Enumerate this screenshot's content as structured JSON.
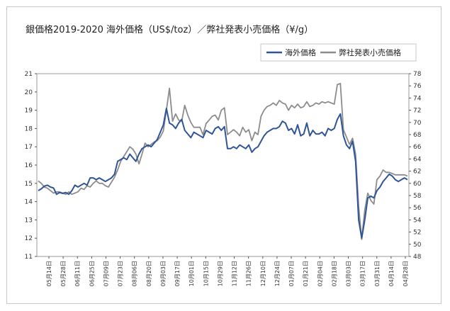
{
  "chart_data": {
    "type": "line",
    "title": "銀価格2019-2020 海外価格（US$/toz）／弊社発表小売価格（¥/g）",
    "legend_position": "top-right",
    "grid": true,
    "y_left": {
      "min": 11,
      "max": 21,
      "step": 1,
      "ticks": [
        "11",
        "12",
        "13",
        "14",
        "15",
        "16",
        "17",
        "18",
        "19",
        "20",
        "21"
      ]
    },
    "y_right": {
      "min": 48,
      "max": 78,
      "step": 2,
      "ticks": [
        "48",
        "50",
        "52",
        "54",
        "56",
        "58",
        "60",
        "62",
        "64",
        "66",
        "68",
        "70",
        "72",
        "74",
        "76",
        "78"
      ]
    },
    "x_labels": [
      "05月14日",
      "05月28日",
      "06月11日",
      "06月25日",
      "07月09日",
      "07月23日",
      "08月06日",
      "08月20日",
      "09月03日",
      "09月17日",
      "10月01日",
      "10月15日",
      "10月29日",
      "11月12日",
      "11月26日",
      "12月10日",
      "12月24日",
      "01月07日",
      "01月21日",
      "02月04日",
      "02月18日",
      "03月03日",
      "03月17日",
      "03月31日",
      "04月14日",
      "04月28日"
    ],
    "series": [
      {
        "name": "海外価格",
        "axis": "left",
        "color": "#2f5597",
        "values": [
          14.6,
          14.7,
          14.85,
          14.9,
          14.8,
          14.75,
          14.4,
          14.5,
          14.45,
          14.5,
          14.4,
          14.6,
          14.9,
          14.8,
          14.9,
          15.0,
          14.9,
          15.3,
          15.3,
          15.2,
          15.3,
          15.2,
          15.1,
          15.2,
          15.3,
          15.5,
          16.2,
          16.3,
          16.4,
          16.3,
          16.6,
          16.4,
          16.2,
          16.6,
          16.9,
          17.0,
          17.1,
          17.0,
          17.2,
          17.4,
          17.8,
          18.2,
          19.1,
          18.3,
          18.2,
          18.0,
          18.3,
          18.5,
          17.9,
          17.7,
          17.5,
          17.8,
          17.7,
          17.6,
          17.5,
          17.9,
          17.8,
          17.7,
          18.0,
          18.1,
          17.9,
          18.1,
          16.9,
          16.9,
          17.0,
          16.9,
          17.1,
          17.0,
          16.9,
          17.1,
          16.7,
          16.9,
          17.0,
          17.3,
          17.6,
          17.8,
          17.9,
          18.0,
          18.0,
          18.1,
          18.4,
          18.3,
          17.9,
          18.0,
          17.7,
          18.2,
          17.6,
          17.7,
          18.3,
          17.6,
          17.9,
          17.7,
          17.7,
          17.8,
          17.6,
          18.0,
          17.9,
          18.0,
          18.5,
          18.8,
          17.6,
          17.1,
          16.9,
          17.3,
          16.2,
          13.0,
          12.0,
          13.0,
          14.2,
          14.3,
          14.2,
          14.6,
          14.8,
          15.1,
          15.3,
          15.5,
          15.4,
          15.2,
          15.1,
          15.2,
          15.3,
          15.2
        ]
      },
      {
        "name": "弊社発表小売価格",
        "axis": "right",
        "color": "#8c8c8c",
        "values": [
          60.4,
          60,
          59.4,
          59.2,
          58.8,
          58.4,
          58.6,
          58.6,
          58.4,
          58.2,
          58.6,
          58.2,
          58.4,
          58.6,
          59.2,
          59.0,
          59.6,
          59.4,
          60.0,
          60.4,
          60.0,
          60.0,
          59.6,
          59.4,
          60.2,
          61.0,
          62.2,
          63.6,
          64.4,
          65.2,
          66.0,
          65.6,
          64.8,
          63.2,
          64.8,
          66.6,
          66.0,
          66.4,
          66.8,
          67.0,
          67.6,
          68.6,
          72.0,
          75.6,
          70.2,
          71.4,
          70.4,
          70.2,
          72.8,
          71.2,
          70.0,
          69.2,
          69.2,
          69.2,
          68.0,
          69.8,
          70.4,
          71.0,
          71.2,
          70.4,
          72.0,
          72.4,
          68.0,
          68.4,
          68.8,
          68.4,
          67.8,
          69.2,
          68.4,
          68.8,
          67.0,
          68.4,
          68.0,
          71.0,
          72.0,
          72.6,
          72.8,
          73.2,
          72.8,
          73.6,
          73.2,
          73.0,
          72.0,
          72.8,
          72.4,
          73.0,
          72.4,
          72.6,
          73.4,
          72.6,
          72.8,
          73.2,
          73.0,
          73.4,
          73.2,
          73.4,
          73.2,
          73.0,
          76.2,
          76.4,
          68.8,
          67.6,
          66.4,
          67.4,
          64.8,
          56.2,
          50.8,
          55.6,
          58.4,
          57.2,
          56.6,
          60.6,
          61.2,
          62.2,
          61.8,
          61.8,
          61.6,
          61.4,
          61.4,
          61.4,
          61.4,
          61.2
        ]
      }
    ]
  }
}
